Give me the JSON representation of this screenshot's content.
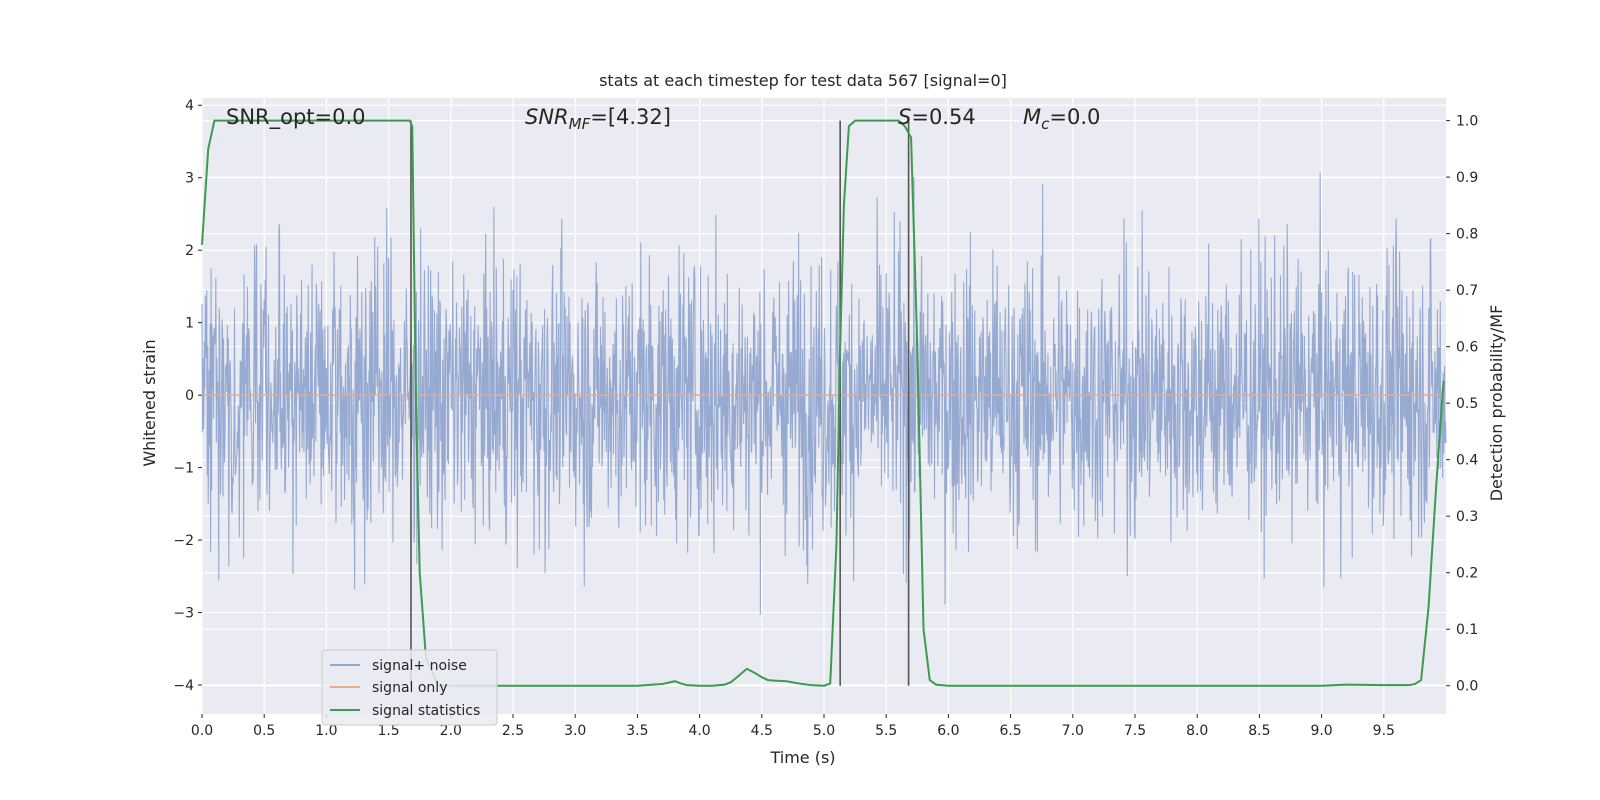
{
  "chart_data": {
    "type": "line",
    "title": "stats at each timestep for test data 567 [signal=0]",
    "xlabel": "Time (s)",
    "ylabel": "Whitened strain",
    "y2label": "Detection probability/MF",
    "xlim": [
      0.0,
      10.0
    ],
    "ylim": [
      -4.4,
      4.1
    ],
    "y2lim": [
      -0.05,
      1.04
    ],
    "x_ticks": [
      "0.0",
      "0.5",
      "1.0",
      "1.5",
      "2.0",
      "2.5",
      "3.0",
      "3.5",
      "4.0",
      "4.5",
      "5.0",
      "5.5",
      "6.0",
      "6.5",
      "7.0",
      "7.5",
      "8.0",
      "8.5",
      "9.0",
      "9.5"
    ],
    "x_tick_values": [
      0,
      0.5,
      1,
      1.5,
      2,
      2.5,
      3,
      3.5,
      4,
      4.5,
      5,
      5.5,
      6,
      6.5,
      7,
      7.5,
      8,
      8.5,
      9,
      9.5
    ],
    "y_ticks": [
      "4",
      "3",
      "2",
      "1",
      "0",
      "−1",
      "−2",
      "−3",
      "−4"
    ],
    "y_tick_values": [
      4,
      3,
      2,
      1,
      0,
      -1,
      -2,
      -3,
      -4
    ],
    "y2_ticks": [
      "1.0",
      "0.9",
      "0.8",
      "0.7",
      "0.6",
      "0.5",
      "0.4",
      "0.3",
      "0.2",
      "0.1",
      "0.0"
    ],
    "y2_tick_values": [
      1.0,
      0.9,
      0.8,
      0.7,
      0.6,
      0.5,
      0.4,
      0.3,
      0.2,
      0.1,
      0.0
    ],
    "grid": true,
    "legend_position": "bottom-left",
    "series": [
      {
        "name": "signal+ noise",
        "color": "#91a6cf",
        "kind": "noise",
        "axis": "left",
        "amplitude_envelope": 3.0
      },
      {
        "name": "signal only",
        "color": "#e8a98c",
        "axis": "left",
        "x": [
          0.0,
          10.0
        ],
        "y": [
          0.0,
          0.0
        ]
      },
      {
        "name": "signal statistics",
        "color": "#3d9a4f",
        "axis": "right",
        "x": [
          0.0,
          0.05,
          0.1,
          0.2,
          0.5,
          1.0,
          1.5,
          1.62,
          1.67,
          1.69,
          1.72,
          1.75,
          1.8,
          1.9,
          2.0,
          2.5,
          3.0,
          3.5,
          3.7,
          3.8,
          3.85,
          3.9,
          4.0,
          4.1,
          4.2,
          4.25,
          4.3,
          4.38,
          4.45,
          4.5,
          4.55,
          4.6,
          4.7,
          4.8,
          4.9,
          5.0,
          5.05,
          5.1,
          5.13,
          5.16,
          5.2,
          5.25,
          5.3,
          5.5,
          5.6,
          5.65,
          5.7,
          5.75,
          5.8,
          5.85,
          5.9,
          6.0,
          7.0,
          8.0,
          9.0,
          9.2,
          9.5,
          9.7,
          9.75,
          9.8,
          9.86,
          9.92,
          9.98
        ],
        "y": [
          0.78,
          0.95,
          1.0,
          1.0,
          1.0,
          1.0,
          1.0,
          1.0,
          1.0,
          0.99,
          0.5,
          0.2,
          0.05,
          0.0,
          0.0,
          0.0,
          0.0,
          0.0,
          0.003,
          0.008,
          0.004,
          0.001,
          0.0,
          0.0,
          0.002,
          0.006,
          0.015,
          0.03,
          0.022,
          0.015,
          0.01,
          0.009,
          0.008,
          0.004,
          0.001,
          0.0,
          0.004,
          0.25,
          0.6,
          0.85,
          0.99,
          1.0,
          1.0,
          1.0,
          1.0,
          0.99,
          0.97,
          0.6,
          0.1,
          0.01,
          0.002,
          0.0,
          0.0,
          0.0,
          0.0,
          0.002,
          0.001,
          0.001,
          0.003,
          0.01,
          0.14,
          0.35,
          0.54
        ]
      }
    ],
    "vertical_lines": [
      1.68,
      5.13,
      5.68
    ],
    "vertical_line_color": "#555555",
    "annotations": [
      {
        "text": "SNR_opt=0.0",
        "italic": false
      },
      {
        "text": "SNR",
        "sub": "MF",
        "rest": "=[4.32]",
        "italic": true
      },
      {
        "text": "S",
        "rest": "=0.54",
        "italic": true
      },
      {
        "text": "M",
        "sub": "c",
        "rest": "=0.0",
        "italic": true
      }
    ]
  }
}
